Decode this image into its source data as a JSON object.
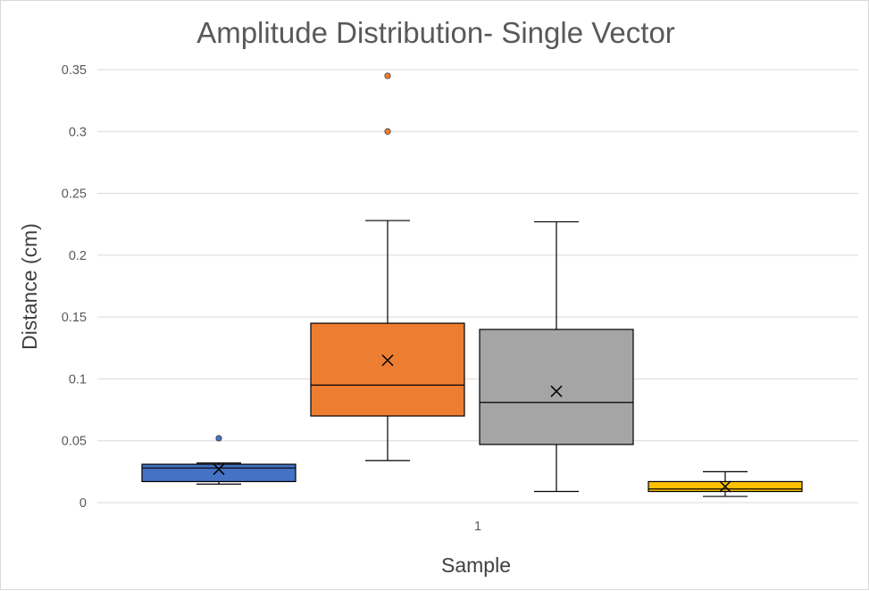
{
  "chart_data": {
    "type": "boxplot",
    "title": "Amplitude Distribution- Single Vector",
    "xlabel": "Sample",
    "ylabel": "Distance (cm)",
    "categories": [
      "1"
    ],
    "ylim": [
      0,
      0.35
    ],
    "yticks": [
      "0",
      "0.05",
      "0.1",
      "0.15",
      "0.2",
      "0.25",
      "0.3",
      "0.35"
    ],
    "ytick_values": [
      0,
      0.05,
      0.1,
      0.15,
      0.2,
      0.25,
      0.3,
      0.35
    ],
    "grid": true,
    "series": [
      {
        "color": "#4472c4",
        "min": 0.015,
        "q1": 0.017,
        "median": 0.028,
        "q3": 0.031,
        "max": 0.032,
        "mean": 0.027,
        "outliers": [
          0.052
        ]
      },
      {
        "color": "#ed7d31",
        "min": 0.034,
        "q1": 0.07,
        "median": 0.095,
        "q3": 0.145,
        "max": 0.228,
        "mean": 0.115,
        "outliers": [
          0.3,
          0.345
        ]
      },
      {
        "color": "#a5a5a5",
        "min": 0.009,
        "q1": 0.047,
        "median": 0.081,
        "q3": 0.14,
        "max": 0.227,
        "mean": 0.09,
        "outliers": []
      },
      {
        "color": "#ffc000",
        "min": 0.005,
        "q1": 0.009,
        "median": 0.011,
        "q3": 0.017,
        "max": 0.025,
        "mean": 0.013,
        "outliers": []
      }
    ]
  }
}
